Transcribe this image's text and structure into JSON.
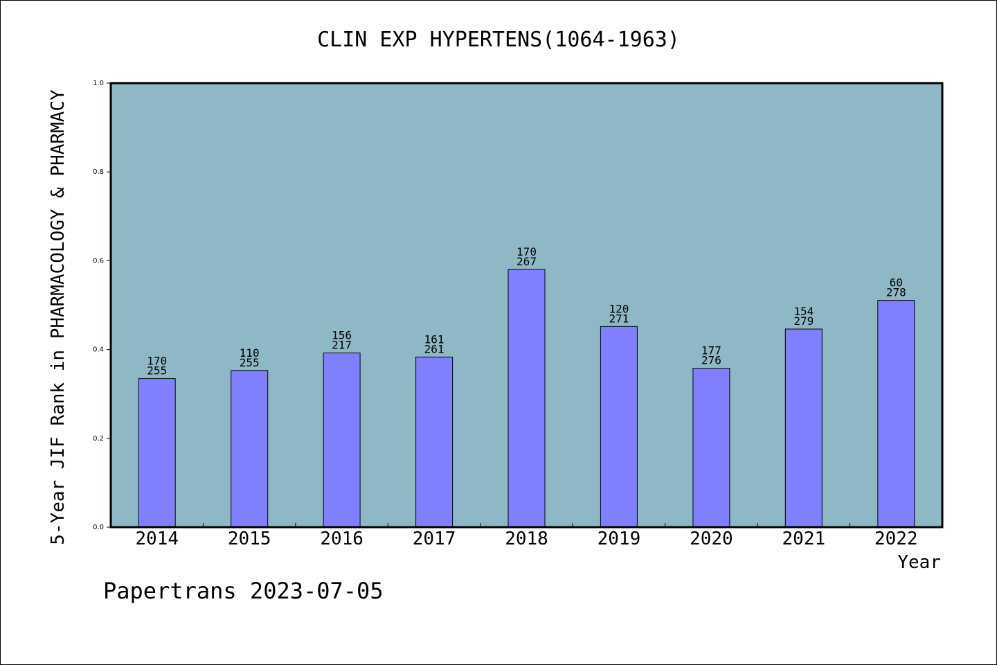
{
  "chart_data": {
    "type": "bar",
    "title": "CLIN EXP HYPERTENS(1064-1963)",
    "xlabel": "Year",
    "ylabel": "5-Year JIF Rank in PHARMACOLOGY & PHARMACY",
    "ylim": [
      0,
      1.0
    ],
    "yticks": [
      "0.0",
      "0.2",
      "0.4",
      "0.6",
      "0.8",
      "1.0"
    ],
    "ytick_values": [
      0,
      0.2,
      0.4,
      0.6,
      0.8,
      1.0
    ],
    "categories": [
      "2014",
      "2015",
      "2016",
      "2017",
      "2018",
      "2019",
      "2020",
      "2021",
      "2022"
    ],
    "values": [
      0.3345,
      0.3529,
      0.3923,
      0.3832,
      0.5805,
      0.452,
      0.3577,
      0.4462,
      0.5108
    ],
    "rank": [
      "170",
      "110",
      "156",
      "161",
      "170",
      "120",
      "177",
      "154",
      "60"
    ],
    "total": [
      "255",
      "255",
      "217",
      "261",
      "267",
      "271",
      "276",
      "279",
      "278"
    ],
    "grid": false,
    "colors": {
      "plot_bg": "#8fb8c6",
      "bar": "#8080ff",
      "axis": "#000000"
    }
  },
  "footer": "Papertrans 2023-07-05"
}
